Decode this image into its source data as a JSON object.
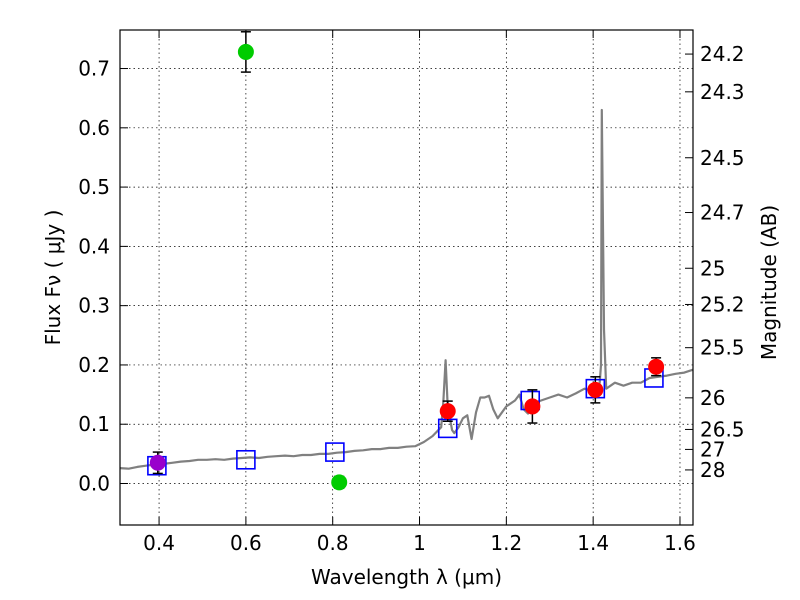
{
  "chart_data": {
    "type": "scatter",
    "title": "",
    "xlabel": "Wavelength  λ (μm)",
    "ylabel": "Flux  Fν  ( μJy )",
    "ylabel_right": "Magnitude (AB)",
    "xlim": [
      0.31,
      1.63
    ],
    "ylim": [
      -0.07,
      0.765
    ],
    "grid": true,
    "x_ticks": [
      0.4,
      0.6,
      0.8,
      1.0,
      1.2,
      1.4,
      1.6
    ],
    "x_tick_labels": [
      "0.4",
      "0.6",
      "0.8",
      "1",
      "1.2",
      "1.4",
      "1.6"
    ],
    "y_ticks": [
      0.0,
      0.1,
      0.2,
      0.3,
      0.4,
      0.5,
      0.6,
      0.7
    ],
    "y_tick_labels": [
      "0.0",
      "0.1",
      "0.2",
      "0.3",
      "0.4",
      "0.5",
      "0.6",
      "0.7"
    ],
    "right_ticks": [
      {
        "flux": 0.7244,
        "label": "24.2"
      },
      {
        "flux": 0.6607,
        "label": "24.3"
      },
      {
        "flux": 0.5495,
        "label": "24.5"
      },
      {
        "flux": 0.4571,
        "label": "24.7"
      },
      {
        "flux": 0.3631,
        "label": "25"
      },
      {
        "flux": 0.302,
        "label": "25.2"
      },
      {
        "flux": 0.2291,
        "label": "25.5"
      },
      {
        "flux": 0.1445,
        "label": "26"
      },
      {
        "flux": 0.0912,
        "label": "26.5"
      },
      {
        "flux": 0.0575,
        "label": "27"
      },
      {
        "flux": 0.0229,
        "label": "28"
      }
    ],
    "series": [
      {
        "kind": "model-spectrum",
        "color": "#808080",
        "x": [
          0.31,
          0.33,
          0.35,
          0.37,
          0.39,
          0.41,
          0.43,
          0.45,
          0.47,
          0.49,
          0.51,
          0.53,
          0.55,
          0.57,
          0.59,
          0.61,
          0.63,
          0.65,
          0.67,
          0.69,
          0.71,
          0.73,
          0.75,
          0.77,
          0.79,
          0.81,
          0.83,
          0.85,
          0.87,
          0.89,
          0.91,
          0.93,
          0.95,
          0.97,
          0.99,
          1.01,
          1.03,
          1.05,
          1.055,
          1.06,
          1.065,
          1.07,
          1.075,
          1.08,
          1.09,
          1.1,
          1.11,
          1.12,
          1.13,
          1.14,
          1.15,
          1.16,
          1.17,
          1.18,
          1.2,
          1.22,
          1.23,
          1.24,
          1.25,
          1.26,
          1.28,
          1.3,
          1.32,
          1.34,
          1.36,
          1.38,
          1.4,
          1.41,
          1.415,
          1.418,
          1.42,
          1.422,
          1.425,
          1.43,
          1.45,
          1.47,
          1.49,
          1.51,
          1.53,
          1.55,
          1.57,
          1.59,
          1.61,
          1.63
        ],
        "y": [
          0.026,
          0.025,
          0.028,
          0.03,
          0.032,
          0.033,
          0.035,
          0.037,
          0.038,
          0.04,
          0.04,
          0.041,
          0.04,
          0.042,
          0.043,
          0.044,
          0.043,
          0.045,
          0.046,
          0.047,
          0.046,
          0.048,
          0.048,
          0.05,
          0.05,
          0.052,
          0.053,
          0.055,
          0.056,
          0.058,
          0.058,
          0.06,
          0.06,
          0.062,
          0.063,
          0.07,
          0.08,
          0.095,
          0.14,
          0.208,
          0.13,
          0.11,
          0.09,
          0.085,
          0.095,
          0.11,
          0.115,
          0.075,
          0.12,
          0.145,
          0.145,
          0.148,
          0.125,
          0.11,
          0.13,
          0.14,
          0.15,
          0.125,
          0.118,
          0.135,
          0.14,
          0.145,
          0.15,
          0.145,
          0.152,
          0.16,
          0.155,
          0.16,
          0.17,
          0.2,
          0.63,
          0.48,
          0.26,
          0.16,
          0.17,
          0.165,
          0.17,
          0.17,
          0.178,
          0.18,
          0.182,
          0.185,
          0.187,
          0.192
        ]
      },
      {
        "kind": "model-photometry",
        "marker": "open-square",
        "color": "#0000ff",
        "x": [
          0.395,
          0.6,
          0.805,
          1.065,
          1.255,
          1.405,
          1.54
        ],
        "y": [
          0.03,
          0.04,
          0.053,
          0.093,
          0.14,
          0.16,
          0.178
        ]
      },
      {
        "kind": "observed-red",
        "marker": "filled-circle",
        "color": "#ff0000",
        "x": [
          1.065,
          1.26,
          1.405,
          1.545
        ],
        "y": [
          0.122,
          0.13,
          0.158,
          0.197
        ],
        "err": [
          0.017,
          0.028,
          0.022,
          0.015
        ]
      },
      {
        "kind": "observed-green",
        "marker": "filled-circle",
        "color": "#00cc00",
        "x": [
          0.6,
          0.815
        ],
        "y": [
          0.728,
          0.002
        ],
        "err": [
          0.034,
          0.01
        ]
      },
      {
        "kind": "observed-magenta",
        "marker": "filled-circle",
        "color": "#9900cc",
        "x": [
          0.397
        ],
        "y": [
          0.035
        ],
        "err": [
          0.018
        ]
      }
    ]
  }
}
